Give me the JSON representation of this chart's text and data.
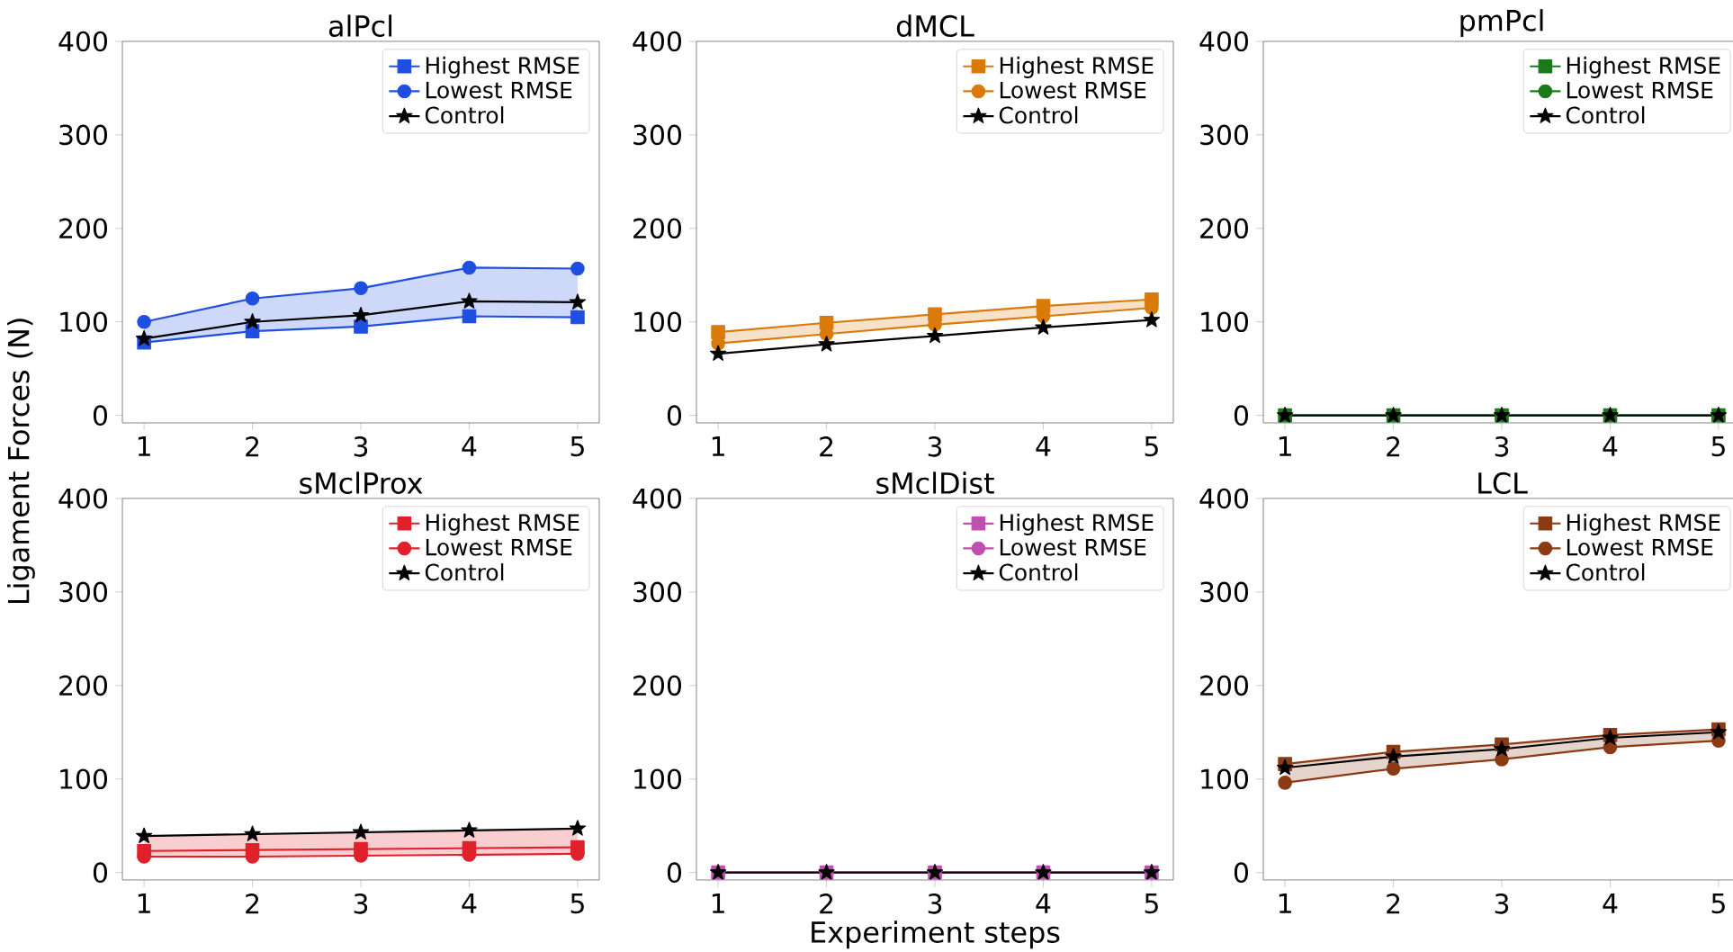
{
  "chart_data": [
    {
      "type": "line",
      "title": "alPcl",
      "ylabel": "Ligament Forces (N)",
      "x": [
        1,
        2,
        3,
        4,
        5
      ],
      "xlim": [
        0.8,
        5.2
      ],
      "xticks": [
        1,
        2,
        3,
        4,
        5
      ],
      "ylim": [
        -8,
        400
      ],
      "yticks": [
        0,
        100,
        200,
        300,
        400
      ],
      "legend": "top right",
      "series": [
        {
          "name": "Highest RMSE",
          "color": "#1f4fe0",
          "marker": "square",
          "values": [
            78,
            90,
            95,
            106,
            105
          ],
          "lower": [
            78,
            90,
            95,
            106,
            105
          ],
          "upper": [
            100,
            125,
            136,
            158,
            157
          ]
        },
        {
          "name": "Lowest RMSE",
          "color": "#1f4fe0",
          "marker": "circle",
          "values": [
            100,
            125,
            136,
            158,
            157
          ]
        },
        {
          "name": "Control",
          "color": "#000000",
          "marker": "star",
          "values": [
            82,
            100,
            107,
            122,
            121
          ]
        }
      ]
    },
    {
      "type": "line",
      "title": "dMCL",
      "x": [
        1,
        2,
        3,
        4,
        5
      ],
      "xlim": [
        0.8,
        5.2
      ],
      "xticks": [
        1,
        2,
        3,
        4,
        5
      ],
      "ylim": [
        -8,
        400
      ],
      "yticks": [
        0,
        100,
        200,
        300,
        400
      ],
      "legend": "top right",
      "series": [
        {
          "name": "Highest RMSE",
          "color": "#d97a0a",
          "marker": "square",
          "values": [
            89,
            99,
            108,
            117,
            124
          ],
          "lower": [
            77,
            87,
            97,
            106,
            115
          ],
          "upper": [
            89,
            99,
            108,
            117,
            124
          ]
        },
        {
          "name": "Lowest RMSE",
          "color": "#d97a0a",
          "marker": "circle",
          "values": [
            77,
            87,
            97,
            106,
            115
          ]
        },
        {
          "name": "Control",
          "color": "#000000",
          "marker": "star",
          "values": [
            66,
            76,
            85,
            94,
            102
          ]
        }
      ]
    },
    {
      "type": "line",
      "title": "pmPcl",
      "x": [
        1,
        2,
        3,
        4,
        5
      ],
      "xlim": [
        0.8,
        5.2
      ],
      "xticks": [
        1,
        2,
        3,
        4,
        5
      ],
      "ylim": [
        -8,
        400
      ],
      "yticks": [
        0,
        100,
        200,
        300,
        400
      ],
      "legend": "top right",
      "series": [
        {
          "name": "Highest RMSE",
          "color": "#1a7a1a",
          "marker": "square",
          "values": [
            0,
            0,
            0,
            0,
            0
          ]
        },
        {
          "name": "Lowest RMSE",
          "color": "#1a7a1a",
          "marker": "circle",
          "values": [
            null,
            null,
            null,
            null,
            null
          ]
        },
        {
          "name": "Control",
          "color": "#000000",
          "marker": "star",
          "values": [
            0,
            0,
            0,
            0,
            0
          ]
        }
      ]
    },
    {
      "type": "line",
      "title": "sMclProx",
      "x": [
        1,
        2,
        3,
        4,
        5
      ],
      "xlim": [
        0.8,
        5.2
      ],
      "xticks": [
        1,
        2,
        3,
        4,
        5
      ],
      "ylim": [
        -8,
        400
      ],
      "yticks": [
        0,
        100,
        200,
        300,
        400
      ],
      "legend": "top right",
      "series": [
        {
          "name": "Highest RMSE",
          "color": "#e0202a",
          "marker": "square",
          "values": [
            23,
            24,
            25,
            26,
            27
          ],
          "lower": [
            17,
            17,
            18,
            19,
            20
          ],
          "upper": [
            39,
            41,
            43,
            45,
            47
          ]
        },
        {
          "name": "Lowest RMSE",
          "color": "#e0202a",
          "marker": "circle",
          "values": [
            17,
            17,
            18,
            19,
            20
          ]
        },
        {
          "name": "Control",
          "color": "#000000",
          "marker": "star",
          "values": [
            39,
            41,
            43,
            45,
            47
          ]
        }
      ]
    },
    {
      "type": "line",
      "title": "sMclDist",
      "xlabel": "Experiment steps",
      "x": [
        1,
        2,
        3,
        4,
        5
      ],
      "xlim": [
        0.8,
        5.2
      ],
      "xticks": [
        1,
        2,
        3,
        4,
        5
      ],
      "ylim": [
        -8,
        400
      ],
      "yticks": [
        0,
        100,
        200,
        300,
        400
      ],
      "legend": "top right",
      "series": [
        {
          "name": "Highest RMSE",
          "color": "#c050b0",
          "marker": "square",
          "values": [
            0,
            0,
            0,
            0,
            0
          ]
        },
        {
          "name": "Lowest RMSE",
          "color": "#c050b0",
          "marker": "circle",
          "values": [
            null,
            null,
            null,
            null,
            null
          ]
        },
        {
          "name": "Control",
          "color": "#000000",
          "marker": "star",
          "values": [
            0,
            0,
            0,
            0,
            0
          ]
        }
      ]
    },
    {
      "type": "line",
      "title": "LCL",
      "x": [
        1,
        2,
        3,
        4,
        5
      ],
      "xlim": [
        0.8,
        5.2
      ],
      "xticks": [
        1,
        2,
        3,
        4,
        5
      ],
      "ylim": [
        -8,
        400
      ],
      "yticks": [
        0,
        100,
        200,
        300,
        400
      ],
      "legend": "top right",
      "series": [
        {
          "name": "Highest RMSE",
          "color": "#8b3a14",
          "marker": "square",
          "values": [
            116,
            129,
            137,
            147,
            153
          ],
          "lower": [
            96,
            111,
            121,
            134,
            141
          ],
          "upper": [
            116,
            129,
            137,
            147,
            153
          ]
        },
        {
          "name": "Lowest RMSE",
          "color": "#8b3a14",
          "marker": "circle",
          "values": [
            96,
            111,
            121,
            134,
            141
          ]
        },
        {
          "name": "Control",
          "color": "#000000",
          "marker": "star",
          "values": [
            112,
            124,
            132,
            144,
            150
          ]
        }
      ]
    }
  ]
}
